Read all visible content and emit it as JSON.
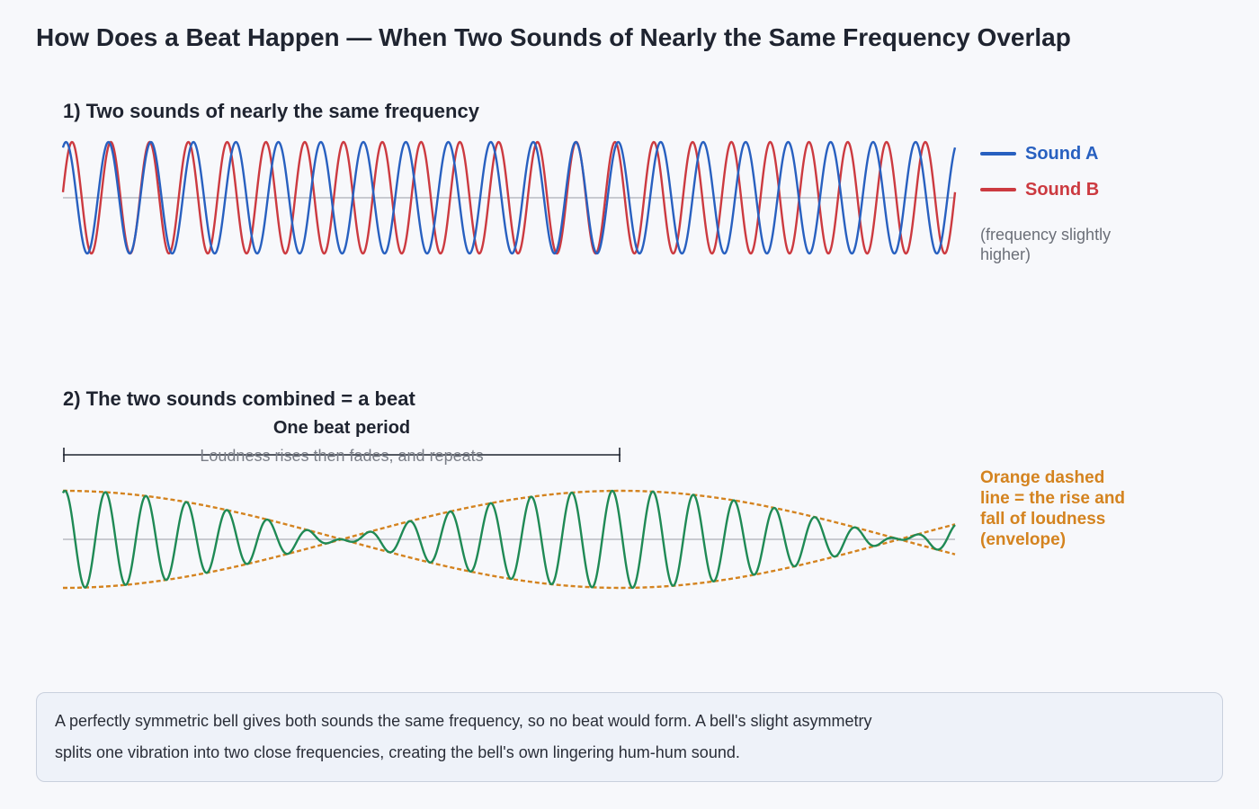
{
  "title": "How Does a Beat Happen — When Two Sounds of Nearly the Same Frequency Overlap",
  "section1": {
    "title": "1) Two sounds of nearly the same frequency",
    "legend": [
      {
        "label": "Sound A",
        "color": "#2860c0"
      },
      {
        "label": "Sound B",
        "color": "#cc3a40"
      }
    ],
    "note": "(frequency slightly higher)"
  },
  "section2": {
    "title": "2) The two sounds combined = a beat",
    "beat_period_label": "One beat period",
    "beat_period_sub": "Loudness rises then fades, and repeats",
    "envelope_note": "Orange dashed line = the rise and fall of loudness (envelope)",
    "wave_color": "#1f8a55",
    "envelope_color": "#d4831f"
  },
  "info_note": "A perfectly symmetric bell gives both sounds the same frequency, so no beat would form. A bell's slight asymmetry splits one vibration into two close frequencies, creating the bell's own lingering hum-hum sound.",
  "chart_data": {
    "type": "line",
    "sound_a_cycles": 21,
    "sound_b_cycles": 23,
    "beat_period_fraction": 0.625
  }
}
